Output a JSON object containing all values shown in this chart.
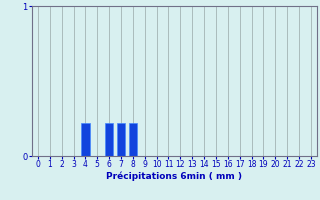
{
  "values": [
    0,
    0,
    0,
    0,
    0.22,
    0,
    0.22,
    0.22,
    0.22,
    0,
    0,
    0,
    0,
    0,
    0,
    0,
    0,
    0,
    0,
    0,
    0,
    0,
    0,
    0
  ],
  "ylim": [
    0,
    1
  ],
  "xlim": [
    -0.5,
    23.5
  ],
  "xlabel": "Précipitations 6min ( mm )",
  "yticks": [
    0,
    1
  ],
  "xticks": [
    0,
    1,
    2,
    3,
    4,
    5,
    6,
    7,
    8,
    9,
    10,
    11,
    12,
    13,
    14,
    15,
    16,
    17,
    18,
    19,
    20,
    21,
    22,
    23
  ],
  "bar_color": "#1144dd",
  "bar_edge_color": "#4488ff",
  "background_color": "#d8f0f0",
  "grid_color": "#aabcbc",
  "axis_color": "#707088",
  "label_color": "#0000bb",
  "tick_color": "#0000bb",
  "xlabel_fontsize": 6.5,
  "tick_fontsize": 5.5
}
